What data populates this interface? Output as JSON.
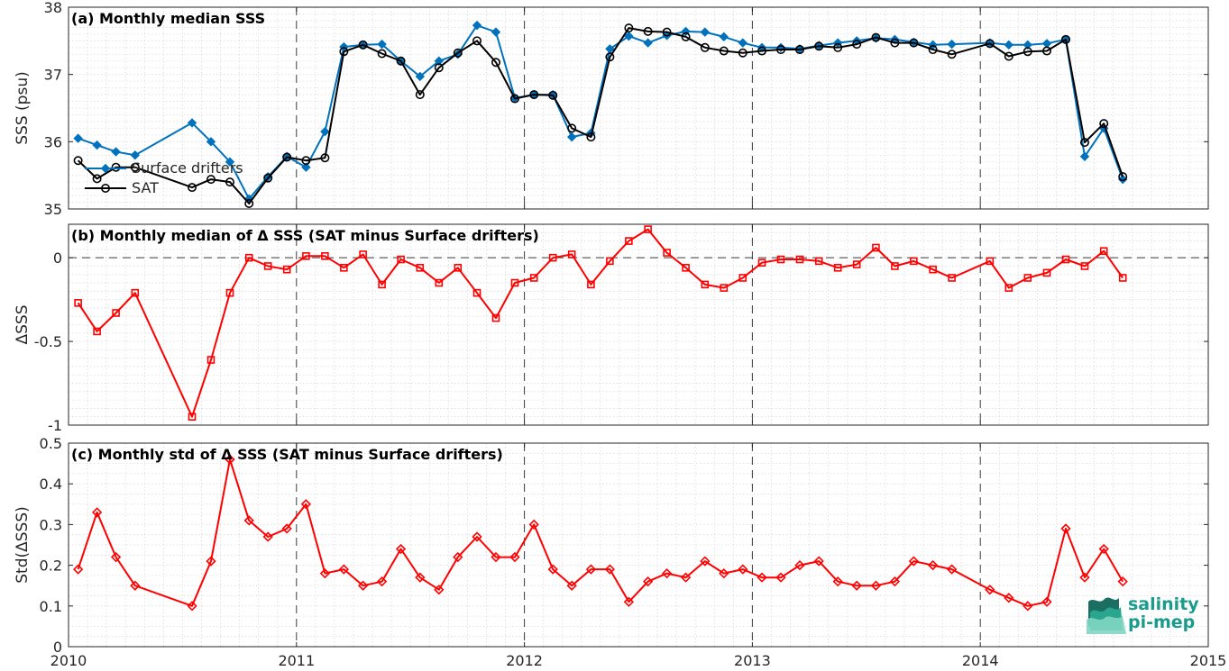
{
  "chart_data": [
    {
      "type": "line",
      "title": "(a) Monthly median SSS",
      "xlabel": "",
      "ylabel": "SSS (psu)",
      "xlim": [
        2010,
        2015
      ],
      "ylim": [
        35,
        38
      ],
      "yticks": [
        35,
        36,
        37,
        38
      ],
      "legend_position": "bottom-left",
      "grid": true,
      "series": [
        {
          "name": "Surface drifters",
          "color": "#0072BD",
          "marker": "diamond",
          "x": [
            2010.042,
            2010.125,
            2010.208,
            2010.292,
            2010.542,
            2010.625,
            2010.708,
            2010.792,
            2010.875,
            2010.958,
            2011.042,
            2011.125,
            2011.208,
            2011.292,
            2011.375,
            2011.458,
            2011.542,
            2011.625,
            2011.708,
            2011.792,
            2011.875,
            2011.958,
            2012.042,
            2012.125,
            2012.208,
            2012.292,
            2012.375,
            2012.458,
            2012.542,
            2012.625,
            2012.708,
            2012.792,
            2012.875,
            2012.958,
            2013.042,
            2013.125,
            2013.208,
            2013.292,
            2013.375,
            2013.458,
            2013.542,
            2013.625,
            2013.708,
            2013.792,
            2013.875,
            2014.042,
            2014.125,
            2014.208,
            2014.292,
            2014.375,
            2014.458,
            2014.542,
            2014.625
          ],
          "values": [
            36.05,
            35.95,
            35.85,
            35.8,
            36.28,
            36.0,
            35.7,
            35.15,
            35.48,
            35.78,
            35.62,
            36.15,
            37.41,
            37.44,
            37.45,
            37.2,
            36.97,
            37.2,
            37.3,
            37.73,
            37.63,
            36.65,
            36.7,
            36.7,
            36.07,
            36.13,
            37.38,
            37.57,
            37.47,
            37.58,
            37.64,
            37.63,
            37.56,
            37.47,
            37.4,
            37.4,
            37.38,
            37.43,
            37.47,
            37.5,
            37.54,
            37.52,
            37.48,
            37.44,
            37.45,
            37.47,
            37.44,
            37.44,
            37.46,
            37.52,
            35.78,
            36.2,
            35.44
          ]
        },
        {
          "name": "SAT",
          "color": "#000000",
          "marker": "circle",
          "x": [
            2010.042,
            2010.125,
            2010.208,
            2010.292,
            2010.542,
            2010.625,
            2010.708,
            2010.792,
            2010.875,
            2010.958,
            2011.042,
            2011.125,
            2011.208,
            2011.292,
            2011.375,
            2011.458,
            2011.542,
            2011.625,
            2011.708,
            2011.792,
            2011.875,
            2011.958,
            2012.042,
            2012.125,
            2012.208,
            2012.292,
            2012.375,
            2012.458,
            2012.542,
            2012.625,
            2012.708,
            2012.792,
            2012.875,
            2012.958,
            2013.042,
            2013.125,
            2013.208,
            2013.292,
            2013.375,
            2013.458,
            2013.542,
            2013.625,
            2013.708,
            2013.792,
            2013.875,
            2014.042,
            2014.125,
            2014.208,
            2014.292,
            2014.375,
            2014.458,
            2014.542,
            2014.625
          ],
          "values": [
            35.72,
            35.45,
            35.62,
            35.62,
            35.32,
            35.44,
            35.4,
            35.08,
            35.46,
            35.77,
            35.72,
            35.76,
            37.34,
            37.44,
            37.31,
            37.2,
            36.7,
            37.1,
            37.32,
            37.5,
            37.18,
            36.64,
            36.7,
            36.69,
            36.2,
            36.07,
            37.26,
            37.69,
            37.64,
            37.63,
            37.56,
            37.4,
            37.35,
            37.32,
            37.35,
            37.37,
            37.37,
            37.42,
            37.4,
            37.45,
            37.55,
            37.47,
            37.47,
            37.37,
            37.3,
            37.46,
            37.27,
            37.34,
            37.35,
            37.52,
            35.99,
            36.27,
            35.48
          ]
        }
      ]
    },
    {
      "type": "line",
      "title": "(b) Monthly median of Δ SSS (SAT minus Surface drifters)",
      "xlabel": "",
      "ylabel": "ΔSSS",
      "xlim": [
        2010,
        2015
      ],
      "ylim": [
        -1,
        0.2
      ],
      "yticks": [
        -1,
        -0.5,
        0
      ],
      "ytick_labels": [
        "-1",
        "-0.5",
        "0"
      ],
      "zero_line": "dashed",
      "grid": true,
      "series": [
        {
          "color": "#FF0000",
          "marker": "square",
          "x": [
            2010.042,
            2010.125,
            2010.208,
            2010.292,
            2010.542,
            2010.625,
            2010.708,
            2010.792,
            2010.875,
            2010.958,
            2011.042,
            2011.125,
            2011.208,
            2011.292,
            2011.375,
            2011.458,
            2011.542,
            2011.625,
            2011.708,
            2011.792,
            2011.875,
            2011.958,
            2012.042,
            2012.125,
            2012.208,
            2012.292,
            2012.375,
            2012.458,
            2012.542,
            2012.625,
            2012.708,
            2012.792,
            2012.875,
            2012.958,
            2013.042,
            2013.125,
            2013.208,
            2013.292,
            2013.375,
            2013.458,
            2013.542,
            2013.625,
            2013.708,
            2013.792,
            2013.875,
            2014.042,
            2014.125,
            2014.208,
            2014.292,
            2014.375,
            2014.458,
            2014.542,
            2014.625
          ],
          "values": [
            -0.27,
            -0.44,
            -0.33,
            -0.21,
            -0.95,
            -0.61,
            -0.21,
            0.0,
            -0.05,
            -0.07,
            0.01,
            0.01,
            -0.06,
            0.02,
            -0.16,
            -0.01,
            -0.06,
            -0.15,
            -0.06,
            -0.21,
            -0.36,
            -0.15,
            -0.12,
            0.0,
            0.02,
            -0.16,
            -0.02,
            0.1,
            0.17,
            0.03,
            -0.06,
            -0.16,
            -0.18,
            -0.12,
            -0.03,
            -0.01,
            -0.01,
            -0.02,
            -0.06,
            -0.04,
            0.06,
            -0.05,
            -0.02,
            -0.07,
            -0.12,
            -0.02,
            -0.18,
            -0.12,
            -0.09,
            -0.01,
            -0.05,
            0.04,
            -0.12
          ]
        }
      ]
    },
    {
      "type": "line",
      "title": "(c) Monthly std of Δ SSS (SAT minus Surface drifters)",
      "xlabel": "",
      "ylabel": "Std(ΔSSS)",
      "xlim": [
        2010,
        2015
      ],
      "xticks": [
        2010,
        2011,
        2012,
        2013,
        2014,
        2015
      ],
      "ylim": [
        0,
        0.5
      ],
      "yticks": [
        0,
        0.1,
        0.2,
        0.3,
        0.4,
        0.5
      ],
      "ytick_labels": [
        "0",
        "0.1",
        "0.2",
        "0.3",
        "0.4",
        "0.5"
      ],
      "grid": true,
      "series": [
        {
          "color": "#FF0000",
          "marker": "diamond",
          "x": [
            2010.042,
            2010.125,
            2010.208,
            2010.292,
            2010.542,
            2010.625,
            2010.708,
            2010.792,
            2010.875,
            2010.958,
            2011.042,
            2011.125,
            2011.208,
            2011.292,
            2011.375,
            2011.458,
            2011.542,
            2011.625,
            2011.708,
            2011.792,
            2011.875,
            2011.958,
            2012.042,
            2012.125,
            2012.208,
            2012.292,
            2012.375,
            2012.458,
            2012.542,
            2012.625,
            2012.708,
            2012.792,
            2012.875,
            2012.958,
            2013.042,
            2013.125,
            2013.208,
            2013.292,
            2013.375,
            2013.458,
            2013.542,
            2013.625,
            2013.708,
            2013.792,
            2013.875,
            2014.042,
            2014.125,
            2014.208,
            2014.292,
            2014.375,
            2014.458,
            2014.542,
            2014.625
          ],
          "values": [
            0.19,
            0.33,
            0.22,
            0.15,
            0.1,
            0.21,
            0.46,
            0.31,
            0.27,
            0.29,
            0.35,
            0.18,
            0.19,
            0.15,
            0.16,
            0.24,
            0.17,
            0.14,
            0.22,
            0.27,
            0.22,
            0.22,
            0.3,
            0.19,
            0.15,
            0.19,
            0.19,
            0.11,
            0.16,
            0.18,
            0.17,
            0.21,
            0.18,
            0.19,
            0.17,
            0.17,
            0.2,
            0.21,
            0.16,
            0.15,
            0.15,
            0.16,
            0.21,
            0.2,
            0.19,
            0.14,
            0.12,
            0.1,
            0.11,
            0.29,
            0.17,
            0.24,
            0.16
          ]
        }
      ]
    }
  ],
  "logo": {
    "line1": "salinity",
    "line2": "pi-mep",
    "color": "#1a9c8c"
  }
}
